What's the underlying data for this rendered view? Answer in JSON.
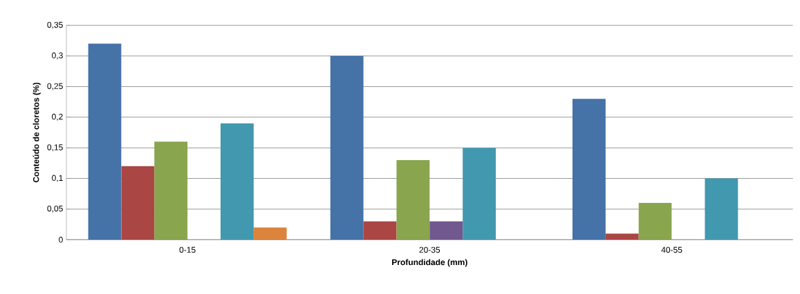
{
  "chart_data": {
    "type": "bar",
    "xlabel": "Profundidade (mm)",
    "ylabel": "Conteúdo de cloretos (%)",
    "categories": [
      "0-15",
      "20-35",
      "40-55"
    ],
    "series": [
      {
        "color": "#4572a7",
        "values": [
          0.32,
          0.3,
          0.23
        ]
      },
      {
        "color": "#aa4643",
        "values": [
          0.12,
          0.03,
          0.01
        ]
      },
      {
        "color": "#89a54e",
        "values": [
          0.16,
          0.13,
          0.06
        ]
      },
      {
        "color": "#71588f",
        "values": [
          null,
          0.03,
          null
        ]
      },
      {
        "color": "#4198af",
        "values": [
          0.19,
          0.15,
          0.1
        ]
      },
      {
        "color": "#db843d",
        "values": [
          0.02,
          null,
          null
        ]
      }
    ],
    "ylim": [
      0,
      0.35
    ],
    "yticks": [
      0,
      {
        "value": 0.05,
        "label": "0,05"
      },
      {
        "value": 0.1,
        "label": "0,1"
      },
      {
        "value": 0.15,
        "label": "0,15"
      },
      {
        "value": 0.2,
        "label": "0,2"
      },
      {
        "value": 0.25,
        "label": "0,25"
      },
      {
        "value": 0.3,
        "label": "0,3"
      },
      {
        "value": 0.35,
        "label": "0,35"
      }
    ],
    "grid": "y"
  }
}
